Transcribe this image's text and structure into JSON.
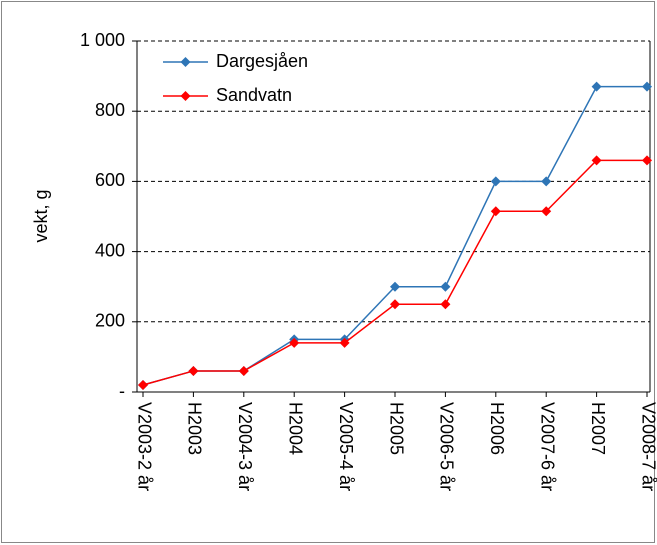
{
  "chart_data": {
    "type": "line",
    "y_label": "vekt, g",
    "categories": [
      "V2003-2 år",
      "H2003",
      "V2004-3 år",
      "H2004",
      "V2005-4 år",
      "H2005",
      "V2006-5 år",
      "H2006",
      "V2007-6 år",
      "H2007",
      "V2008-7 år"
    ],
    "series": [
      {
        "name": "Dargesjåen",
        "color": "#2e75b6",
        "values": [
          20,
          60,
          60,
          150,
          150,
          300,
          300,
          600,
          600,
          870,
          870
        ]
      },
      {
        "name": "Sandvatn",
        "color": "#ff0000",
        "values": [
          20,
          60,
          60,
          140,
          140,
          250,
          250,
          515,
          515,
          660,
          660
        ]
      }
    ],
    "ylim": [
      0,
      1000
    ],
    "yticks": [
      {
        "value": 0,
        "label": "-"
      },
      200,
      400,
      600,
      800,
      {
        "value": 1000,
        "label": "1 000"
      }
    ],
    "grid": true
  }
}
